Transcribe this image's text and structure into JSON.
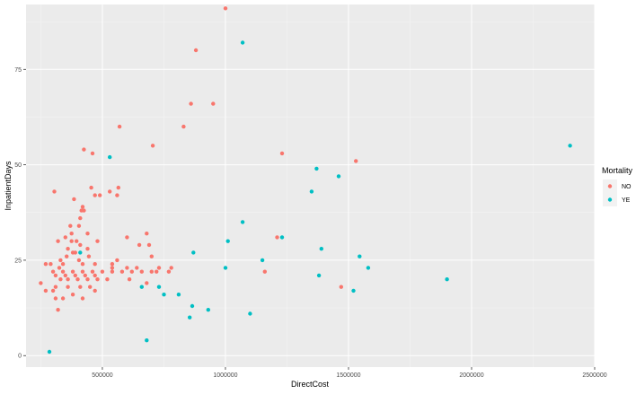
{
  "chart_data": {
    "type": "scatter",
    "xlabel": "DirectCost",
    "ylabel": "InpatientDays",
    "xlim": [
      190000,
      2500000
    ],
    "ylim": [
      -3,
      92
    ],
    "x_ticks": [
      500000,
      1000000,
      1500000,
      2000000,
      2500000
    ],
    "x_tick_labels": [
      "500000",
      "1000000",
      "1500000",
      "2000000",
      "2500000"
    ],
    "y_ticks": [
      0,
      25,
      50,
      75
    ],
    "y_tick_labels": [
      "0",
      "25",
      "50",
      "75"
    ],
    "grid": true,
    "legend": {
      "title": "Mortality",
      "position": "right"
    },
    "colors": {
      "panel": "#ebebeb",
      "grid_major": "#ffffff",
      "grid_minor": "#f5f5f5"
    },
    "series": [
      {
        "name": "NO",
        "color": "#f8766d",
        "points": [
          [
            1000000,
            91
          ],
          [
            880000,
            80
          ],
          [
            860000,
            66
          ],
          [
            950000,
            66
          ],
          [
            830000,
            60
          ],
          [
            570000,
            60
          ],
          [
            705000,
            55
          ],
          [
            1230000,
            53
          ],
          [
            1530000,
            51
          ],
          [
            425000,
            54
          ],
          [
            460000,
            53
          ],
          [
            305000,
            43
          ],
          [
            455000,
            44
          ],
          [
            565000,
            44
          ],
          [
            470000,
            42
          ],
          [
            490000,
            42
          ],
          [
            530000,
            43
          ],
          [
            560000,
            42
          ],
          [
            385000,
            41
          ],
          [
            420000,
            39
          ],
          [
            415000,
            38
          ],
          [
            425000,
            38
          ],
          [
            410000,
            36
          ],
          [
            405000,
            34
          ],
          [
            370000,
            34
          ],
          [
            375000,
            32
          ],
          [
            440000,
            32
          ],
          [
            350000,
            31
          ],
          [
            375000,
            30
          ],
          [
            395000,
            30
          ],
          [
            320000,
            30
          ],
          [
            480000,
            30
          ],
          [
            440000,
            28
          ],
          [
            360000,
            28
          ],
          [
            380000,
            27
          ],
          [
            330000,
            25
          ],
          [
            405000,
            25
          ],
          [
            340000,
            24
          ],
          [
            270000,
            24
          ],
          [
            290000,
            24
          ],
          [
            420000,
            24
          ],
          [
            470000,
            24
          ],
          [
            300000,
            22
          ],
          [
            340000,
            22
          ],
          [
            380000,
            22
          ],
          [
            420000,
            22
          ],
          [
            460000,
            22
          ],
          [
            500000,
            22
          ],
          [
            540000,
            22
          ],
          [
            580000,
            22
          ],
          [
            620000,
            22
          ],
          [
            660000,
            22
          ],
          [
            700000,
            22
          ],
          [
            720000,
            22
          ],
          [
            770000,
            22
          ],
          [
            330000,
            20
          ],
          [
            360000,
            20
          ],
          [
            400000,
            20
          ],
          [
            440000,
            20
          ],
          [
            480000,
            20
          ],
          [
            520000,
            20
          ],
          [
            310000,
            21
          ],
          [
            350000,
            21
          ],
          [
            390000,
            21
          ],
          [
            430000,
            21
          ],
          [
            470000,
            21
          ],
          [
            310000,
            18
          ],
          [
            360000,
            18
          ],
          [
            410000,
            18
          ],
          [
            450000,
            18
          ],
          [
            300000,
            17
          ],
          [
            270000,
            17
          ],
          [
            470000,
            17
          ],
          [
            380000,
            16
          ],
          [
            340000,
            15
          ],
          [
            420000,
            15
          ],
          [
            320000,
            12
          ],
          [
            250000,
            19
          ],
          [
            310000,
            15
          ],
          [
            560000,
            25
          ],
          [
            600000,
            31
          ],
          [
            680000,
            32
          ],
          [
            690000,
            29
          ],
          [
            650000,
            29
          ],
          [
            700000,
            26
          ],
          [
            540000,
            24
          ],
          [
            600000,
            23
          ],
          [
            640000,
            23
          ],
          [
            730000,
            23
          ],
          [
            780000,
            23
          ],
          [
            610000,
            20
          ],
          [
            680000,
            19
          ],
          [
            1210000,
            31
          ],
          [
            1160000,
            22
          ],
          [
            1470000,
            18
          ],
          [
            540000,
            23
          ],
          [
            390000,
            27
          ],
          [
            410000,
            29
          ],
          [
            445000,
            26
          ],
          [
            355000,
            26
          ],
          [
            325000,
            23
          ]
        ]
      },
      {
        "name": "YE",
        "color": "#00bfc4",
        "points": [
          [
            1070000,
            82
          ],
          [
            2400000,
            55
          ],
          [
            530000,
            52
          ],
          [
            1370000,
            49
          ],
          [
            1460000,
            47
          ],
          [
            1350000,
            43
          ],
          [
            1070000,
            35
          ],
          [
            1230000,
            31
          ],
          [
            1010000,
            30
          ],
          [
            1390000,
            28
          ],
          [
            410000,
            27
          ],
          [
            870000,
            27
          ],
          [
            1545000,
            26
          ],
          [
            1150000,
            25
          ],
          [
            1580000,
            23
          ],
          [
            1000000,
            23
          ],
          [
            1380000,
            21
          ],
          [
            1900000,
            20
          ],
          [
            660000,
            18
          ],
          [
            730000,
            18
          ],
          [
            1520000,
            17
          ],
          [
            750000,
            16
          ],
          [
            810000,
            16
          ],
          [
            865000,
            13
          ],
          [
            930000,
            12
          ],
          [
            1100000,
            11
          ],
          [
            855000,
            10
          ],
          [
            680000,
            4
          ],
          [
            285000,
            1
          ]
        ]
      }
    ]
  }
}
